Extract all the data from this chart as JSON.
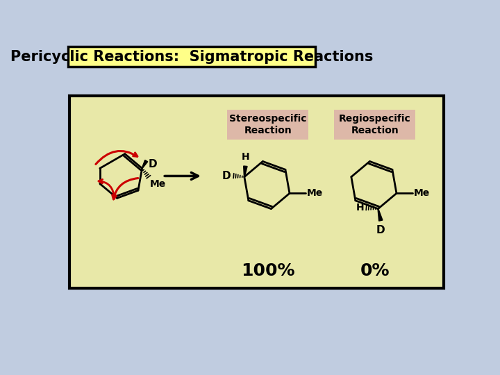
{
  "title": "Pericyclic Reactions:  Sigmatropic Reactions",
  "title_bg": "#ffff88",
  "title_border": "#000000",
  "outer_bg": "#c0cce0",
  "inner_bg": "#e8e8a8",
  "inner_border": "#000000",
  "stereo_label": "Stereospecific\nReaction",
  "regio_label": "Regiospecific\nReaction",
  "stereo_pct": "100%",
  "regio_pct": "0%",
  "label_bg": "#ddb8a8",
  "arrow_color": "#000000",
  "red_arrow_color": "#cc0000",
  "bond_color": "#000000",
  "label_fontsize": 10,
  "pct_fontsize": 18,
  "title_fontsize": 15
}
